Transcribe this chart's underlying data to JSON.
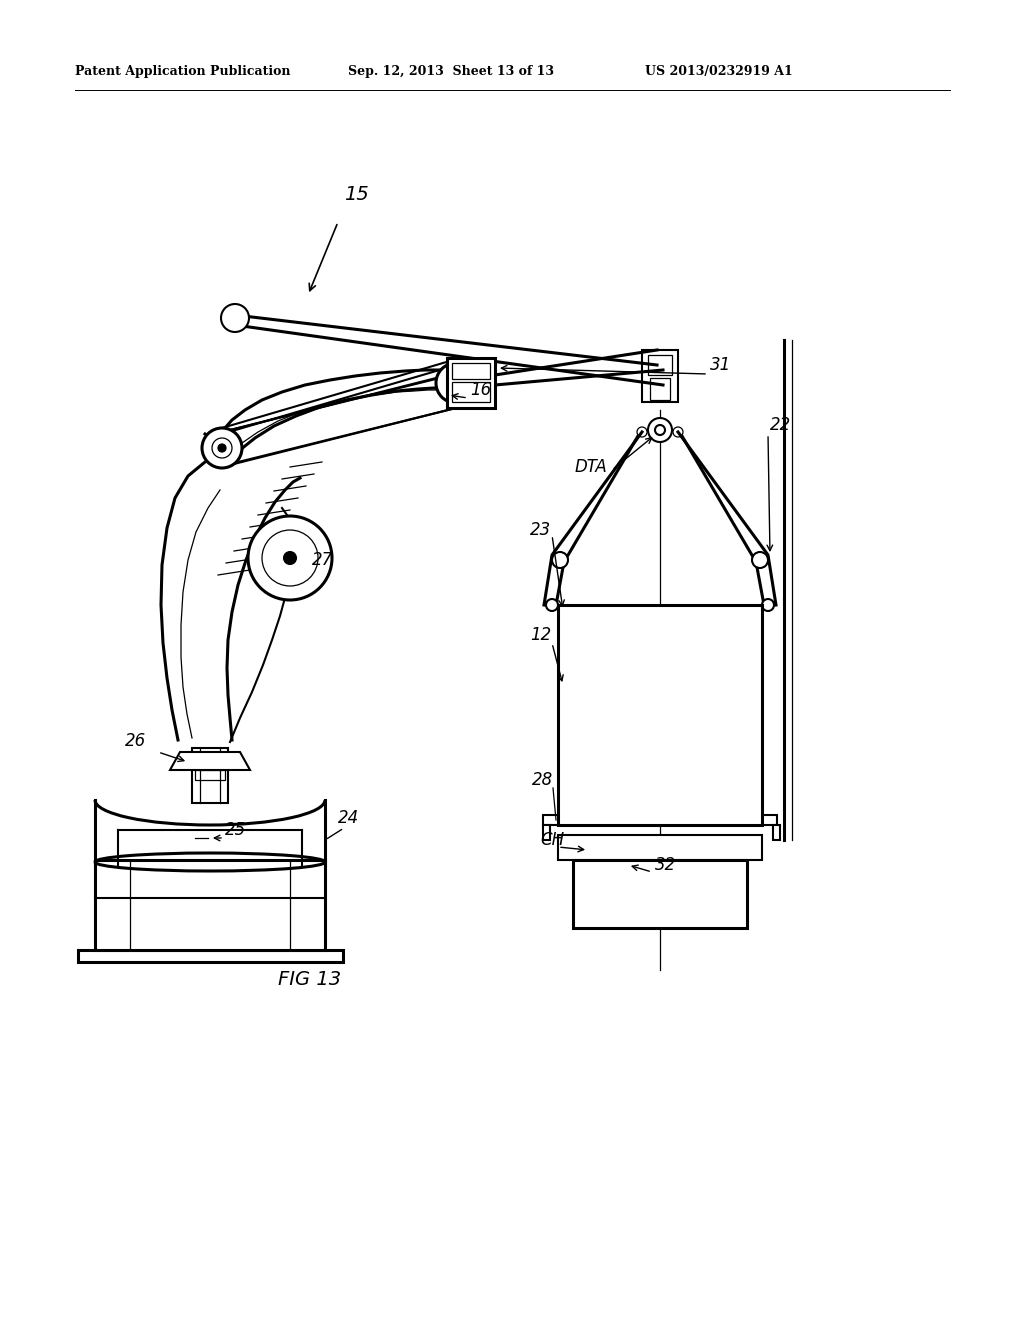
{
  "background_color": "#ffffff",
  "header_left": "Patent Application Publication",
  "header_mid": "Sep. 12, 2013  Sheet 13 of 13",
  "header_right": "US 2013/0232919 A1",
  "figure_label": "FIG 13"
}
